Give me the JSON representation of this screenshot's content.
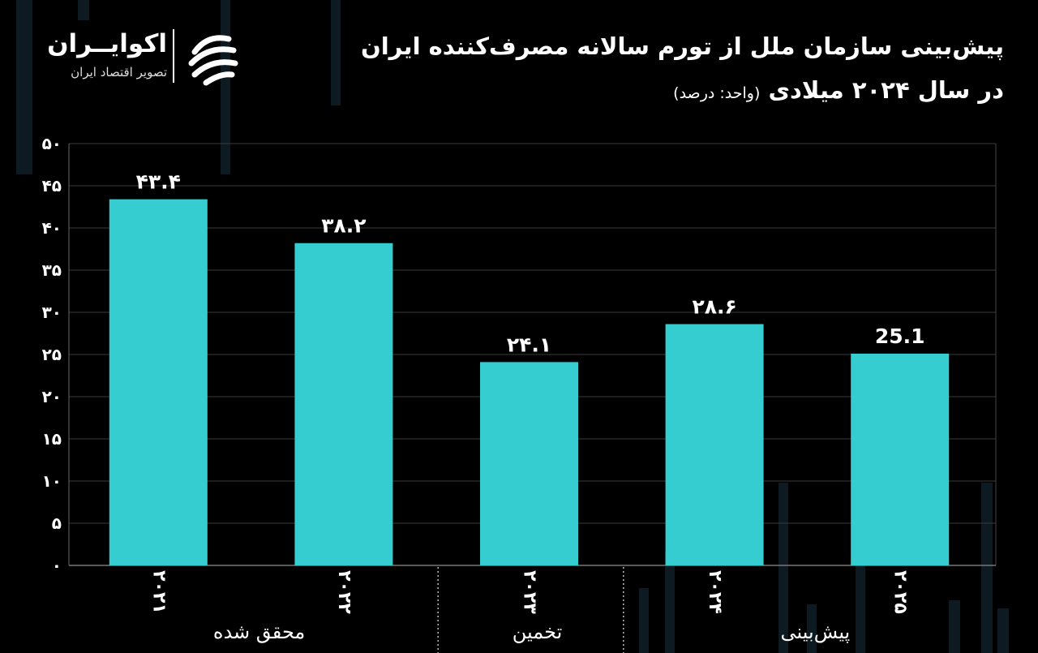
{
  "header": {
    "title_line1": "پیش‌بینی سازمان ملل از تورم سالانه مصرف‌کننده ایران",
    "title_line2": "در سال ۲۰۲۴ میلادی",
    "unit": "(واحد: درصد)"
  },
  "logo": {
    "name": "اکوایــران",
    "subtitle": "تصویر اقتصاد ایران",
    "icon": "ecoiran-swirl-icon"
  },
  "colors": {
    "bar": "#35CDD0",
    "background": "#000000",
    "grid": "#3a3a3a",
    "text": "#ffffff"
  },
  "chart_data": {
    "type": "bar",
    "categories": [
      "۲۰۲۱",
      "۲۰۲۲",
      "۲۰۲۳",
      "۲۰۲۴",
      "۲۰۲۵"
    ],
    "values": [
      43.4,
      38.2,
      24.1,
      28.6,
      25.1
    ],
    "value_labels": [
      "۴۳.۴",
      "۳۸.۲",
      "۲۴.۱",
      "۲۸.۶",
      "25.1"
    ],
    "ylim": [
      0,
      50
    ],
    "yticks": [
      0,
      5,
      10,
      15,
      20,
      25,
      30,
      35,
      40,
      45,
      50
    ],
    "ytick_labels": [
      "۰",
      "۵",
      "۱۰",
      "۱۵",
      "۲۰",
      "۲۵",
      "۳۰",
      "۳۵",
      "۴۰",
      "۴۵",
      "۵۰"
    ],
    "groups": [
      {
        "label": "محقق شده",
        "categories": [
          0,
          1
        ]
      },
      {
        "label": "تخمین",
        "categories": [
          2
        ]
      },
      {
        "label": "پیش‌بینی",
        "categories": [
          3,
          4
        ]
      }
    ],
    "grid": true
  }
}
